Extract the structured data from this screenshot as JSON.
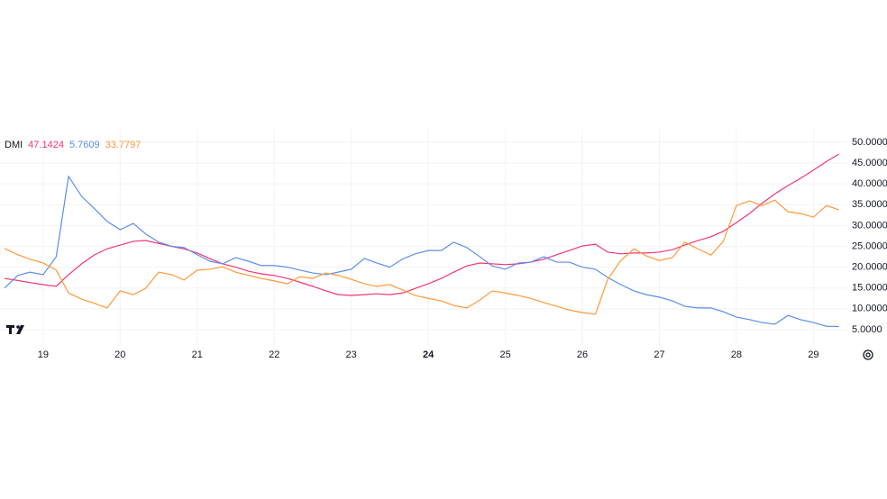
{
  "chart_data": {
    "type": "line",
    "title": "DMI",
    "x": [
      18.5,
      18.67,
      18.83,
      19,
      19.17,
      19.33,
      19.5,
      19.67,
      19.83,
      20,
      20.17,
      20.33,
      20.5,
      20.67,
      20.83,
      21,
      21.17,
      21.33,
      21.5,
      21.67,
      21.83,
      22,
      22.17,
      22.33,
      22.5,
      22.67,
      22.83,
      23,
      23.17,
      23.33,
      23.5,
      23.67,
      23.83,
      24,
      24.17,
      24.33,
      24.5,
      24.67,
      24.83,
      25,
      25.17,
      25.33,
      25.5,
      25.67,
      25.83,
      26,
      26.17,
      26.33,
      26.5,
      26.67,
      26.83,
      27,
      27.17,
      27.33,
      27.5,
      27.67,
      27.83,
      28,
      28.17,
      28.33,
      28.5,
      28.67,
      28.83,
      29,
      29.17,
      29.33
    ],
    "series": [
      {
        "color": "#f23672",
        "values": [
          17.3,
          16.8,
          16.3,
          15.8,
          15.4,
          18.2,
          20.8,
          23,
          24.4,
          25.3,
          26.2,
          26.4,
          25.7,
          25,
          24.4,
          23.4,
          22,
          20.8,
          20,
          19,
          18.4,
          18,
          17.3,
          16.4,
          15.4,
          14.3,
          13.4,
          13.2,
          13.4,
          13.6,
          13.4,
          13.8,
          14.9,
          16,
          17.3,
          18.8,
          20.3,
          21,
          20.8,
          20.6,
          20.8,
          21.2,
          21.9,
          23,
          24,
          25.1,
          25.5,
          23.6,
          23.2,
          23.4,
          23.4,
          23.6,
          24.2,
          25.3,
          26.4,
          27.3,
          28.6,
          30.7,
          32.9,
          35.3,
          37.6,
          39.6,
          41.3,
          43.3,
          45.4,
          47.1424
        ]
      },
      {
        "color": "#5b8def",
        "values": [
          15,
          18,
          18.8,
          18.2,
          22.5,
          41.8,
          37,
          34,
          31,
          29,
          30.5,
          28,
          26,
          25,
          24.7,
          23,
          21.4,
          20.8,
          22.3,
          21.4,
          20.4,
          20.4,
          20,
          19.3,
          18.6,
          18.2,
          18.8,
          19.5,
          22.1,
          21,
          20,
          22,
          23.2,
          24,
          24,
          26,
          24.7,
          22.5,
          20.3,
          19.5,
          21,
          21.2,
          22.5,
          21.2,
          21.2,
          20,
          19.5,
          17.5,
          15.8,
          14.3,
          13.4,
          12.8,
          11.9,
          10.6,
          10.2,
          10.2,
          9.3,
          8,
          7.4,
          6.7,
          6.3,
          8.4,
          7.4,
          6.7,
          5.8,
          5.7609
        ]
      },
      {
        "color": "#ff9838",
        "values": [
          24.5,
          23,
          21.9,
          21,
          19.3,
          13.8,
          12.3,
          11.3,
          10.2,
          14.3,
          13.4,
          14.9,
          18.8,
          18.2,
          16.9,
          19.3,
          19.5,
          20.1,
          18.8,
          18,
          17.3,
          16.7,
          16,
          17.7,
          17.3,
          18.6,
          18,
          17.1,
          16,
          15.4,
          15.8,
          14.5,
          13.2,
          12.5,
          11.9,
          10.8,
          10.2,
          12.1,
          14.3,
          13.8,
          13.2,
          12.5,
          11.5,
          10.6,
          9.7,
          9.1,
          8.7,
          17.1,
          21.6,
          24.4,
          22.7,
          21.6,
          22.3,
          26,
          24.4,
          22.9,
          26.2,
          34.8,
          35.9,
          34.8,
          36.1,
          33.3,
          32.9,
          32,
          34.8,
          33.7797
        ]
      }
    ],
    "xlim": [
      18.44,
      29.44
    ],
    "xticks": [
      19,
      20,
      21,
      22,
      23,
      24,
      25,
      26,
      27,
      28,
      29
    ],
    "xticks_bold": [
      24
    ],
    "ylim": [
      2,
      52
    ],
    "yticks": [
      {
        "value": 5,
        "label": "5.0000"
      },
      {
        "value": 10,
        "label": "10.0000"
      },
      {
        "value": 15,
        "label": "15.0000"
      },
      {
        "value": 20,
        "label": "20.0000"
      },
      {
        "value": 25,
        "label": "25.0000"
      },
      {
        "value": 30,
        "label": "30.0000"
      },
      {
        "value": 35,
        "label": "35.0000"
      },
      {
        "value": 40,
        "label": "40.0000"
      },
      {
        "value": 45,
        "label": "45.0000"
      },
      {
        "value": 50,
        "label": "50.0000"
      }
    ],
    "grid": true
  }
}
